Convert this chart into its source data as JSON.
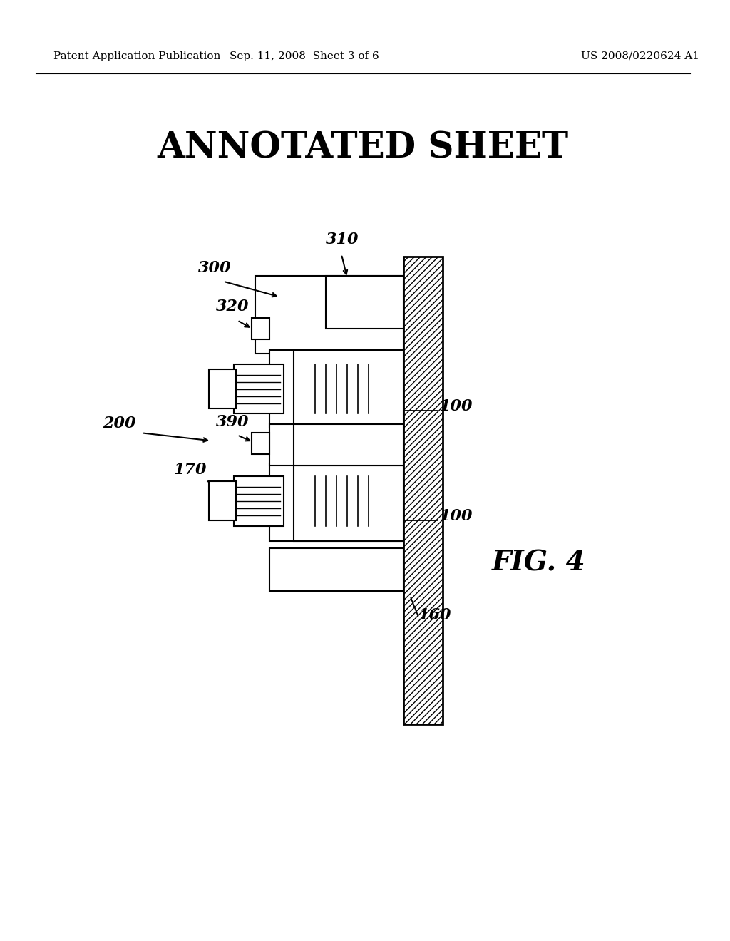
{
  "header_left": "Patent Application Publication",
  "header_mid": "Sep. 11, 2008  Sheet 3 of 6",
  "header_right": "US 2008/0220624 A1",
  "title": "ANNOTATED SHEET",
  "fig_label": "FIG. 4",
  "background_color": "#ffffff",
  "line_color": "#000000",
  "hatch_color": "#000000",
  "labels": {
    "100_top": "100",
    "100_mid": "100",
    "160": "160",
    "170": "170",
    "200": "200",
    "300": "300",
    "310": "310",
    "320": "320",
    "390": "390"
  }
}
